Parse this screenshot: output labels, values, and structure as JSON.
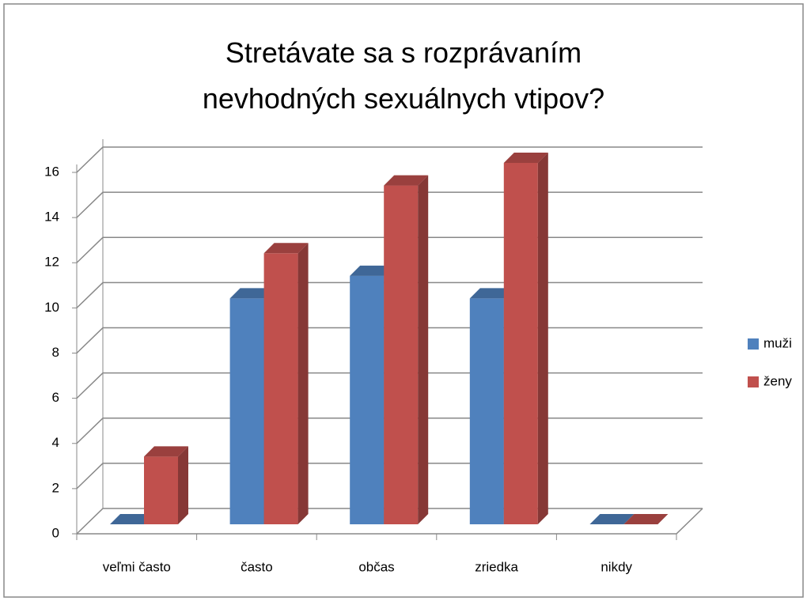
{
  "chart_data": {
    "type": "bar3d",
    "title": "Stretávate sa s rozprávaním nevhodných sexuálnych vtipov?",
    "categories": [
      "veľmi často",
      "často",
      "občas",
      "zriedka",
      "nikdy"
    ],
    "series": [
      {
        "name": "muži",
        "color": "#4f81bd",
        "values": [
          0,
          10,
          11,
          10,
          0
        ]
      },
      {
        "name": "ženy",
        "color": "#c0504d",
        "values": [
          3,
          12,
          15,
          16,
          0
        ]
      }
    ],
    "ylim": [
      0,
      16
    ],
    "yticks": [
      0,
      2,
      4,
      6,
      8,
      10,
      12,
      14,
      16
    ],
    "grid": true,
    "legend": "right"
  }
}
